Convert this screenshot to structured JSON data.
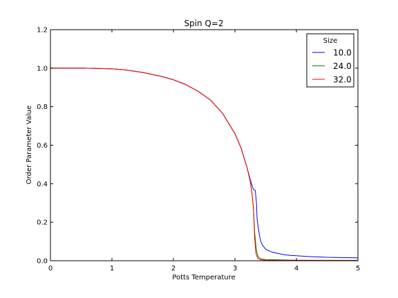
{
  "chart_data": {
    "type": "line",
    "title": "Spin Q=2",
    "xlabel": "Potts Temperature",
    "ylabel": "Order Parameter Value",
    "xlim": [
      0,
      5
    ],
    "ylim": [
      0,
      1.2
    ],
    "xticks": [
      0,
      1,
      2,
      3,
      4,
      5
    ],
    "xtick_labels": [
      "0",
      "1",
      "2",
      "3",
      "4",
      "5"
    ],
    "yticks": [
      0.0,
      0.2,
      0.4,
      0.6,
      0.8,
      1.0,
      1.2
    ],
    "ytick_labels": [
      "0.0",
      "0.2",
      "0.4",
      "0.6",
      "0.8",
      "1.0",
      "1.2"
    ],
    "grid": false,
    "legend": {
      "title": "Size",
      "placement": "top-right"
    },
    "series": [
      {
        "name": "10.0",
        "color": "#0000ff",
        "x": [
          0,
          0.5,
          1.0,
          1.2,
          1.5,
          1.8,
          2.0,
          2.2,
          2.4,
          2.6,
          2.8,
          3.0,
          3.1,
          3.2,
          3.25,
          3.3,
          3.33,
          3.35,
          3.36,
          3.38,
          3.4,
          3.42,
          3.45,
          3.5,
          3.6,
          3.7,
          3.8,
          3.9,
          4.0,
          4.2,
          4.5,
          4.8,
          5.0
        ],
        "y": [
          1.0,
          1.0,
          0.997,
          0.992,
          0.978,
          0.958,
          0.94,
          0.915,
          0.88,
          0.835,
          0.765,
          0.66,
          0.585,
          0.48,
          0.42,
          0.37,
          0.365,
          0.3,
          0.22,
          0.17,
          0.13,
          0.1,
          0.08,
          0.06,
          0.045,
          0.038,
          0.032,
          0.028,
          0.026,
          0.022,
          0.018,
          0.016,
          0.015
        ]
      },
      {
        "name": "24.0",
        "color": "#008000",
        "x": [
          0,
          0.5,
          1.0,
          1.2,
          1.5,
          1.8,
          2.0,
          2.2,
          2.4,
          2.6,
          2.8,
          3.0,
          3.1,
          3.2,
          3.25,
          3.28,
          3.3,
          3.32,
          3.35,
          3.38,
          3.42,
          3.5,
          4.0,
          5.0
        ],
        "y": [
          1.0,
          1.0,
          0.997,
          0.992,
          0.978,
          0.958,
          0.94,
          0.915,
          0.88,
          0.835,
          0.765,
          0.66,
          0.585,
          0.48,
          0.41,
          0.34,
          0.28,
          0.15,
          0.05,
          0.02,
          0.01,
          0.006,
          0.003,
          0.002
        ]
      },
      {
        "name": "32.0",
        "color": "#ff0000",
        "x": [
          0,
          0.5,
          1.0,
          1.2,
          1.5,
          1.8,
          2.0,
          2.2,
          2.4,
          2.6,
          2.8,
          3.0,
          3.1,
          3.2,
          3.25,
          3.28,
          3.3,
          3.32,
          3.34,
          3.37,
          3.42,
          3.5,
          4.0,
          5.0
        ],
        "y": [
          1.0,
          1.0,
          0.997,
          0.992,
          0.978,
          0.958,
          0.94,
          0.915,
          0.88,
          0.835,
          0.765,
          0.66,
          0.585,
          0.48,
          0.41,
          0.34,
          0.28,
          0.12,
          0.04,
          0.012,
          0.005,
          0.003,
          0.002,
          0.001
        ]
      }
    ]
  }
}
